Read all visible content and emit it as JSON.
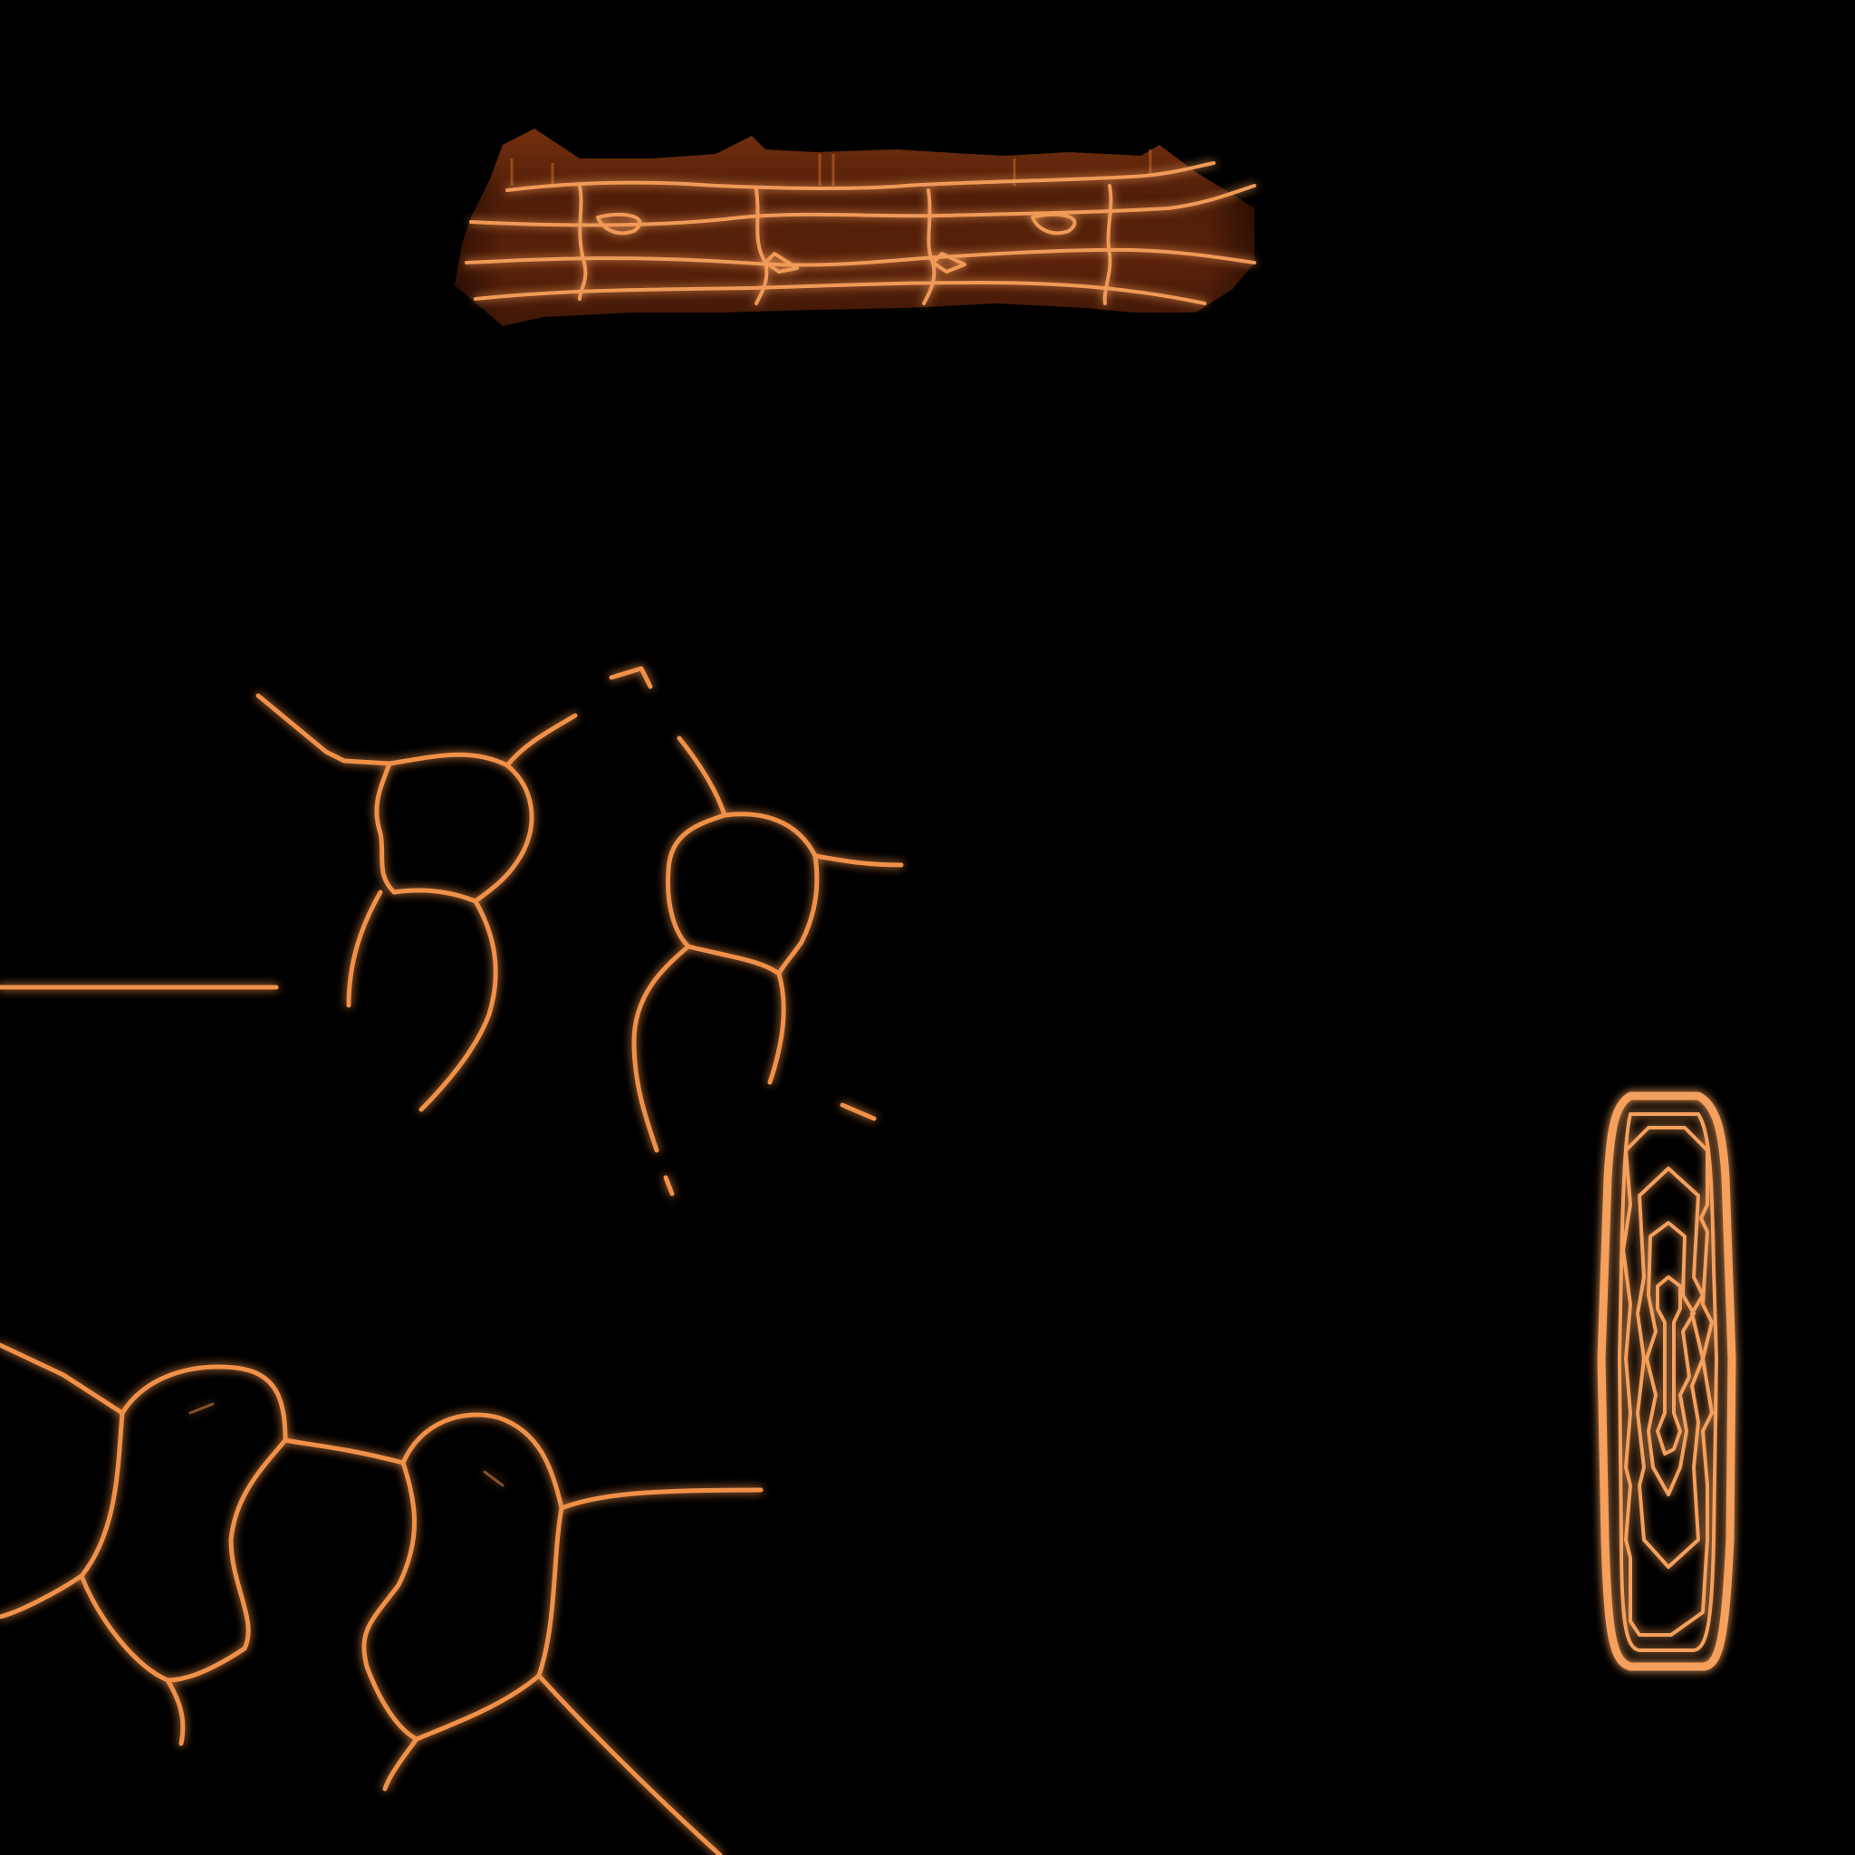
{
  "texture_atlas": {
    "background": "#000000",
    "palette": {
      "glow_core": "#ffb677",
      "glow_mid": "#e07a33",
      "glow_outer": "#8a3a12",
      "band_fill_dark": "#2a0e03",
      "band_fill_mid": "#5a2408",
      "band_fill_light": "#9a4a18"
    },
    "islands": [
      {
        "name": "horizontal-band-island"
      },
      {
        "name": "cell-network-upper-island"
      },
      {
        "name": "cell-network-lower-island"
      },
      {
        "name": "capsule-contour-island"
      }
    ]
  }
}
